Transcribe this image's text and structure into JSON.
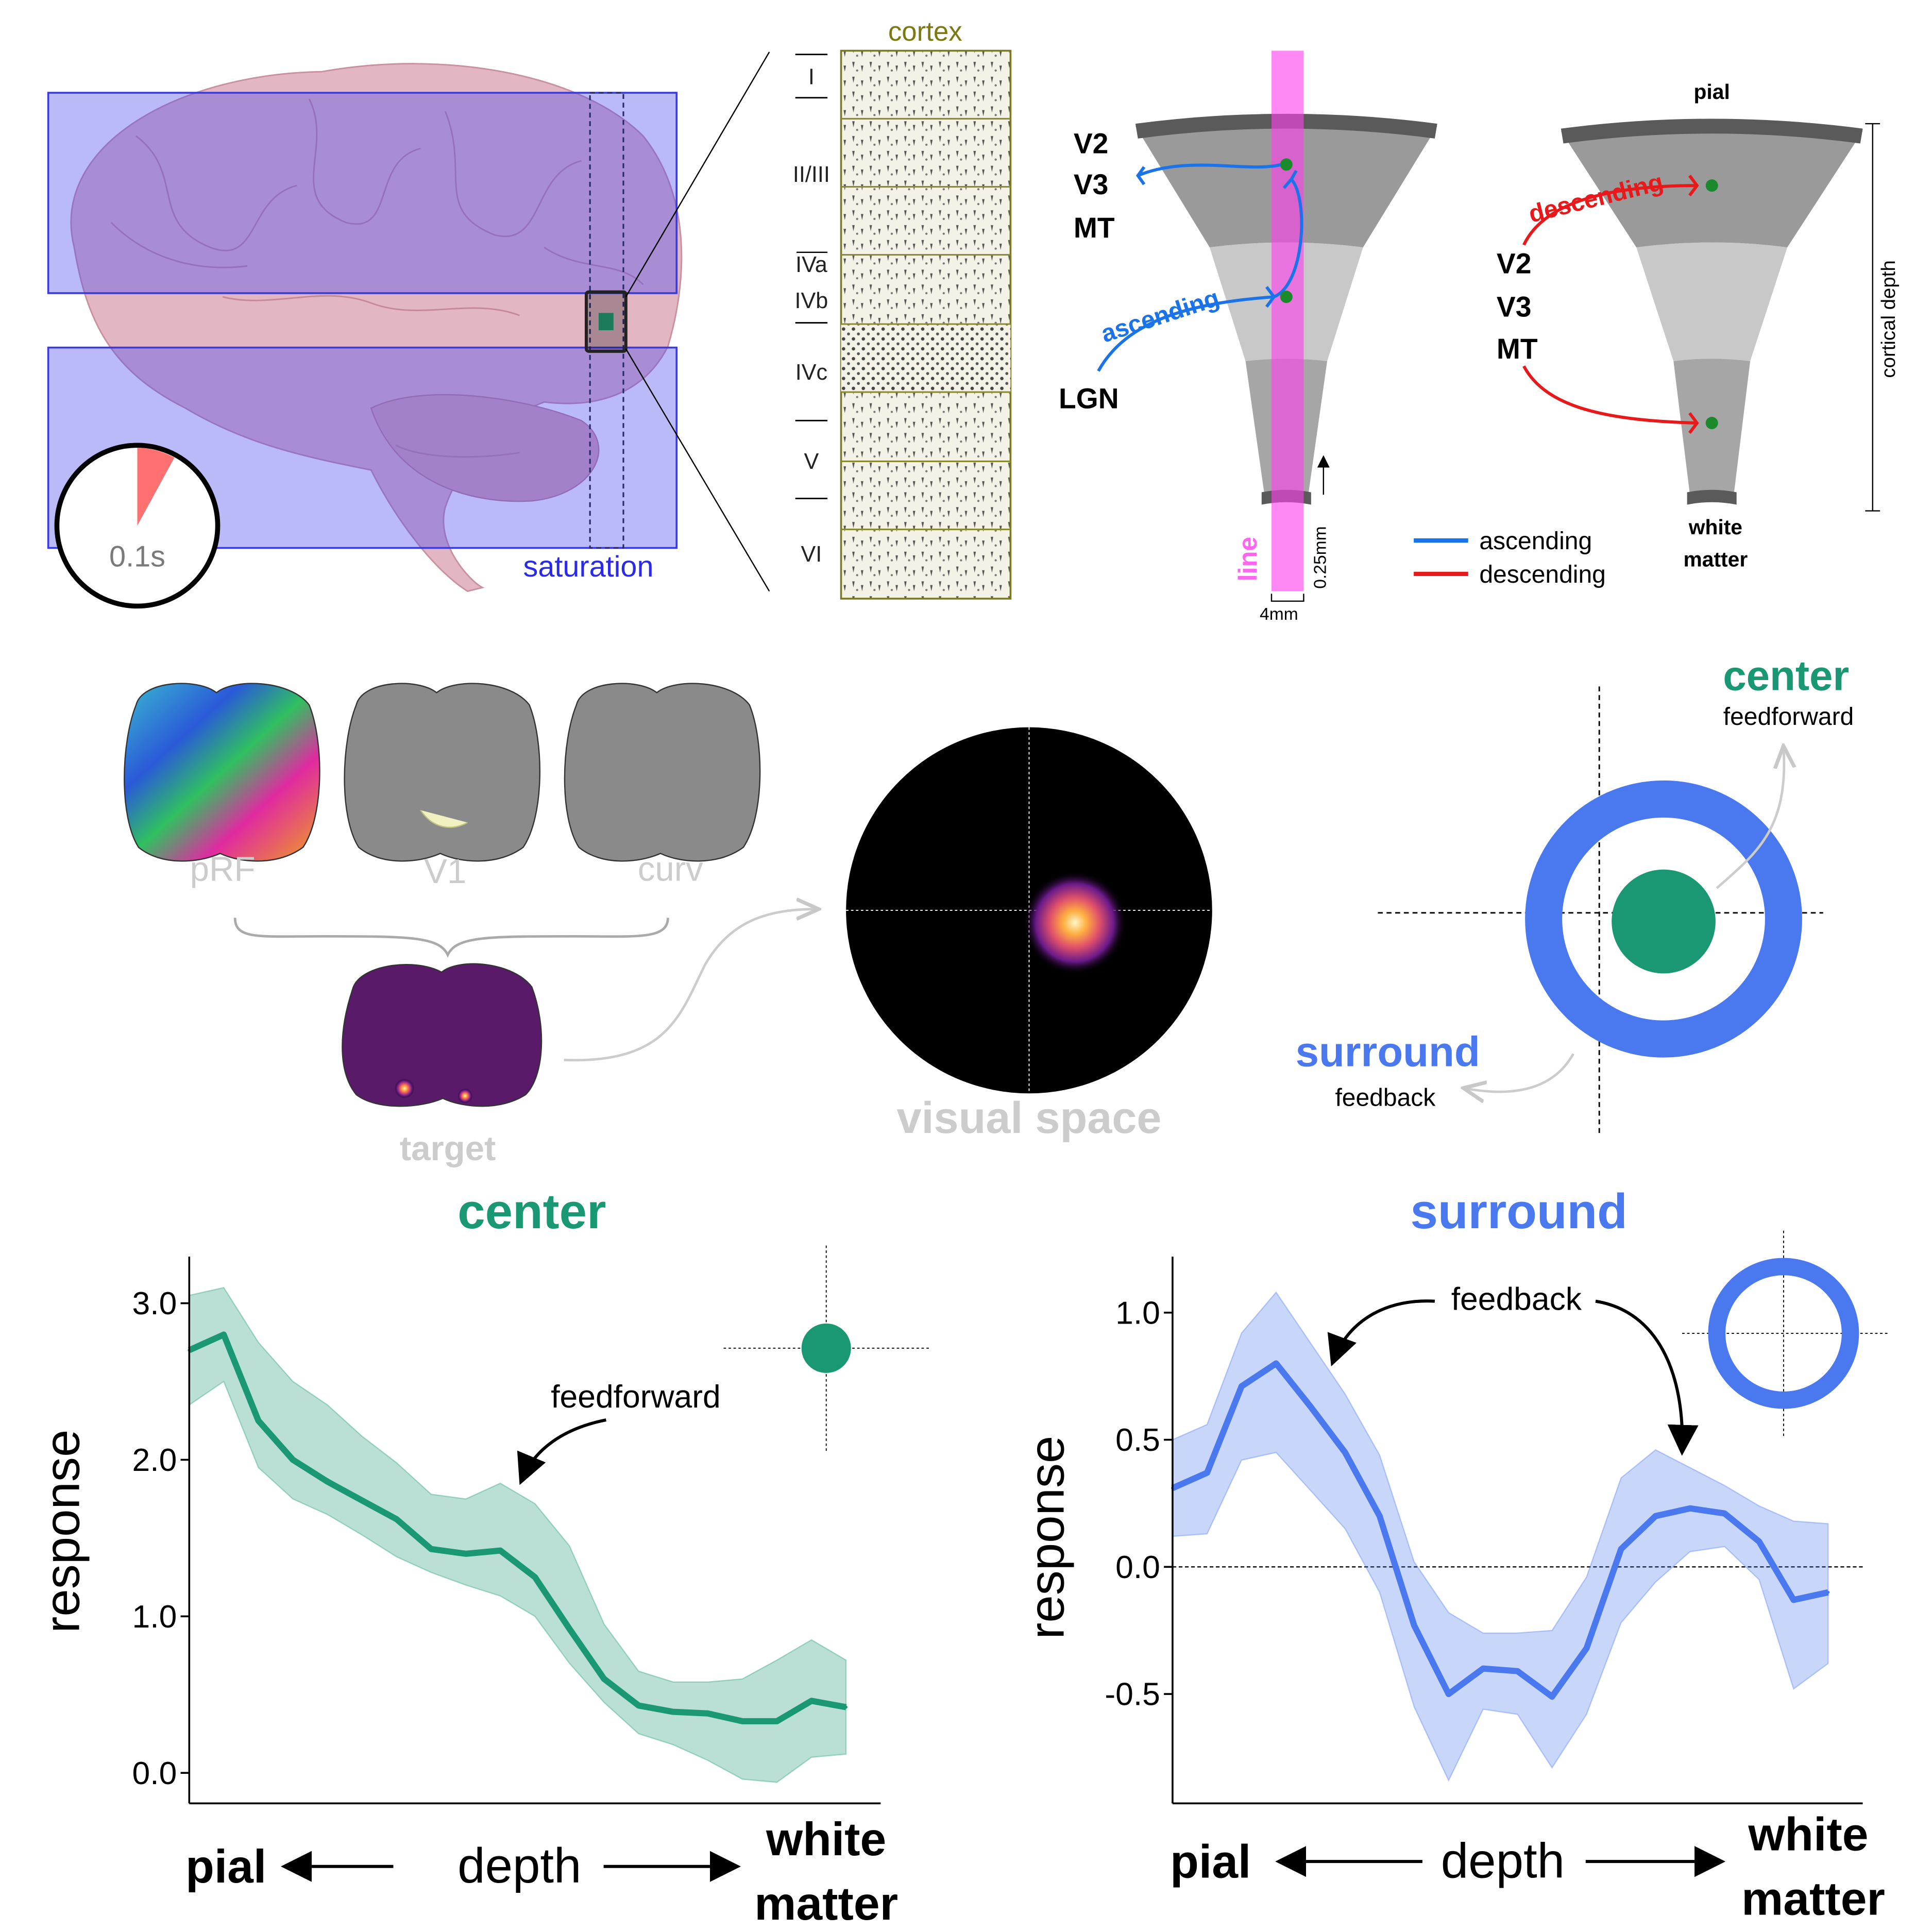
{
  "panel_a": {
    "saturation_label": "saturation",
    "clock_label": "0.1s",
    "cortex_label": "cortex",
    "layers": [
      "I",
      "II/III",
      "IVa",
      "IVb",
      "IVc",
      "V",
      "VI"
    ]
  },
  "panel_b": {
    "areas": [
      "V2",
      "V3",
      "MT"
    ],
    "lgn_label": "LGN",
    "ascending_curve_label": "ascending",
    "descending_curve_label": "descending",
    "line_label": "line",
    "width_label": "4mm",
    "thickness_label": "0.25mm",
    "legend": [
      {
        "label": "ascending",
        "color": "#1a73e8"
      },
      {
        "label": "descending",
        "color": "#e8191b"
      }
    ],
    "pial_label": "pial",
    "white_matter_label": [
      "white",
      "matter"
    ],
    "cortical_depth_label": "cortical depth"
  },
  "panel_c": {
    "brain_labels": [
      "pRF",
      "V1",
      "curv"
    ],
    "target_label": "target",
    "visual_space_label": "visual space",
    "center_label": "center",
    "feedforward_label": "feedforward",
    "surround_label": "surround",
    "feedback_label": "feedback"
  },
  "colors": {
    "center": "#1a9873",
    "surround": "#4a78ee",
    "ascending": "#1a73e8",
    "descending": "#e8191b",
    "line": "#ff55ee",
    "saturation": "#2a2ae8"
  },
  "chart_data": [
    {
      "type": "line",
      "title": "center",
      "ylabel": "response",
      "x_axis_left": "pial",
      "x_axis_middle": "depth",
      "x_axis_right": [
        "white",
        "matter"
      ],
      "ylim": [
        -0.25,
        3.25
      ],
      "yticks": [
        "0.0",
        "1.0",
        "2.0",
        "3.0"
      ],
      "annotation": "feedforward",
      "series": [
        {
          "values": [
            2.7,
            2.8,
            2.25,
            2.0,
            1.86,
            1.74,
            1.62,
            1.43,
            1.4,
            1.42,
            1.25,
            0.92,
            0.6,
            0.43,
            0.39,
            0.38,
            0.33,
            0.33,
            0.46,
            0.42
          ],
          "upper": [
            3.05,
            3.1,
            2.75,
            2.5,
            2.35,
            2.15,
            1.98,
            1.78,
            1.75,
            1.85,
            1.72,
            1.45,
            0.95,
            0.65,
            0.58,
            0.58,
            0.6,
            0.72,
            0.85,
            0.72
          ],
          "lower": [
            2.35,
            2.5,
            1.95,
            1.75,
            1.65,
            1.52,
            1.38,
            1.28,
            1.2,
            1.13,
            1.0,
            0.7,
            0.45,
            0.25,
            0.18,
            0.08,
            -0.04,
            -0.06,
            0.1,
            0.12
          ]
        }
      ]
    },
    {
      "type": "line",
      "title": "surround",
      "ylabel": "response",
      "x_axis_left": "pial",
      "x_axis_middle": "depth",
      "x_axis_right": [
        "white",
        "matter"
      ],
      "ylim": [
        -0.93,
        1.22
      ],
      "yticks": [
        "-0.5",
        "0.0",
        "0.5",
        "1.0"
      ],
      "annotation": "feedback",
      "series": [
        {
          "values": [
            0.31,
            0.37,
            0.71,
            0.8,
            0.63,
            0.45,
            0.2,
            -0.23,
            -0.5,
            -0.4,
            -0.41,
            -0.51,
            -0.32,
            0.07,
            0.2,
            0.23,
            0.21,
            0.1,
            -0.13,
            -0.1
          ],
          "upper": [
            0.5,
            0.56,
            0.92,
            1.08,
            0.88,
            0.68,
            0.44,
            0.02,
            -0.18,
            -0.26,
            -0.26,
            -0.25,
            -0.04,
            0.35,
            0.46,
            0.39,
            0.32,
            0.24,
            0.18,
            0.17
          ],
          "lower": [
            0.12,
            0.13,
            0.42,
            0.45,
            0.3,
            0.15,
            -0.1,
            -0.55,
            -0.84,
            -0.56,
            -0.58,
            -0.79,
            -0.58,
            -0.22,
            -0.06,
            0.06,
            0.08,
            -0.05,
            -0.48,
            -0.38
          ]
        }
      ]
    }
  ]
}
